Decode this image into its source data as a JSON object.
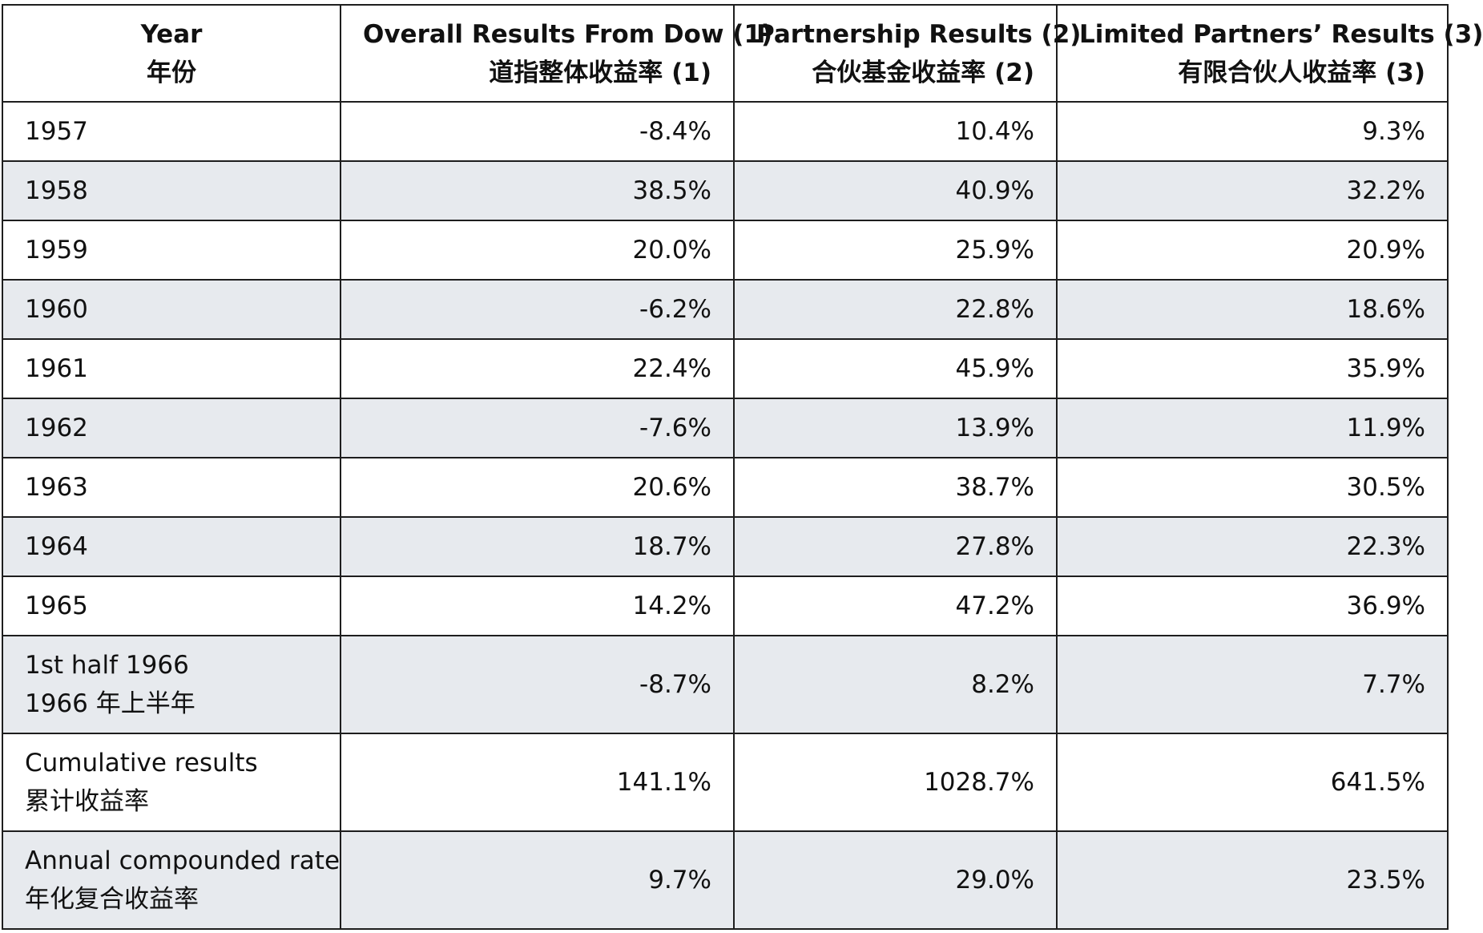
{
  "table": {
    "headers": [
      {
        "en": "Year",
        "zh": "年份"
      },
      {
        "en": "Overall Results From Dow (1)",
        "zh": "道指整体收益率 (1)"
      },
      {
        "en": "Partnership Results (2)",
        "zh": "合伙基金收益率 (2)"
      },
      {
        "en": "Limited Partners’ Results (3)",
        "zh": "有限合伙人收益率 (3)"
      }
    ],
    "rows": [
      {
        "year": "1957",
        "year_zh": "",
        "dow": "-8.4%",
        "partnership": "10.4%",
        "limited": "9.3%"
      },
      {
        "year": "1958",
        "year_zh": "",
        "dow": "38.5%",
        "partnership": "40.9%",
        "limited": "32.2%"
      },
      {
        "year": "1959",
        "year_zh": "",
        "dow": "20.0%",
        "partnership": "25.9%",
        "limited": "20.9%"
      },
      {
        "year": "1960",
        "year_zh": "",
        "dow": "-6.2%",
        "partnership": "22.8%",
        "limited": "18.6%"
      },
      {
        "year": "1961",
        "year_zh": "",
        "dow": "22.4%",
        "partnership": "45.9%",
        "limited": "35.9%"
      },
      {
        "year": "1962",
        "year_zh": "",
        "dow": "-7.6%",
        "partnership": "13.9%",
        "limited": "11.9%"
      },
      {
        "year": "1963",
        "year_zh": "",
        "dow": "20.6%",
        "partnership": "38.7%",
        "limited": "30.5%"
      },
      {
        "year": "1964",
        "year_zh": "",
        "dow": "18.7%",
        "partnership": "27.8%",
        "limited": "22.3%"
      },
      {
        "year": "1965",
        "year_zh": "",
        "dow": "14.2%",
        "partnership": "47.2%",
        "limited": "36.9%"
      },
      {
        "year": "1st half 1966",
        "year_zh": "1966 年上半年",
        "dow": "-8.7%",
        "partnership": "8.2%",
        "limited": "7.7%"
      },
      {
        "year": "Cumulative results",
        "year_zh": "累计收益率",
        "dow": "141.1%",
        "partnership": "1028.7%",
        "limited": "641.5%"
      },
      {
        "year": "Annual compounded rate",
        "year_zh": "年化复合收益率",
        "dow": "9.7%",
        "partnership": "29.0%",
        "limited": "23.5%"
      }
    ]
  }
}
